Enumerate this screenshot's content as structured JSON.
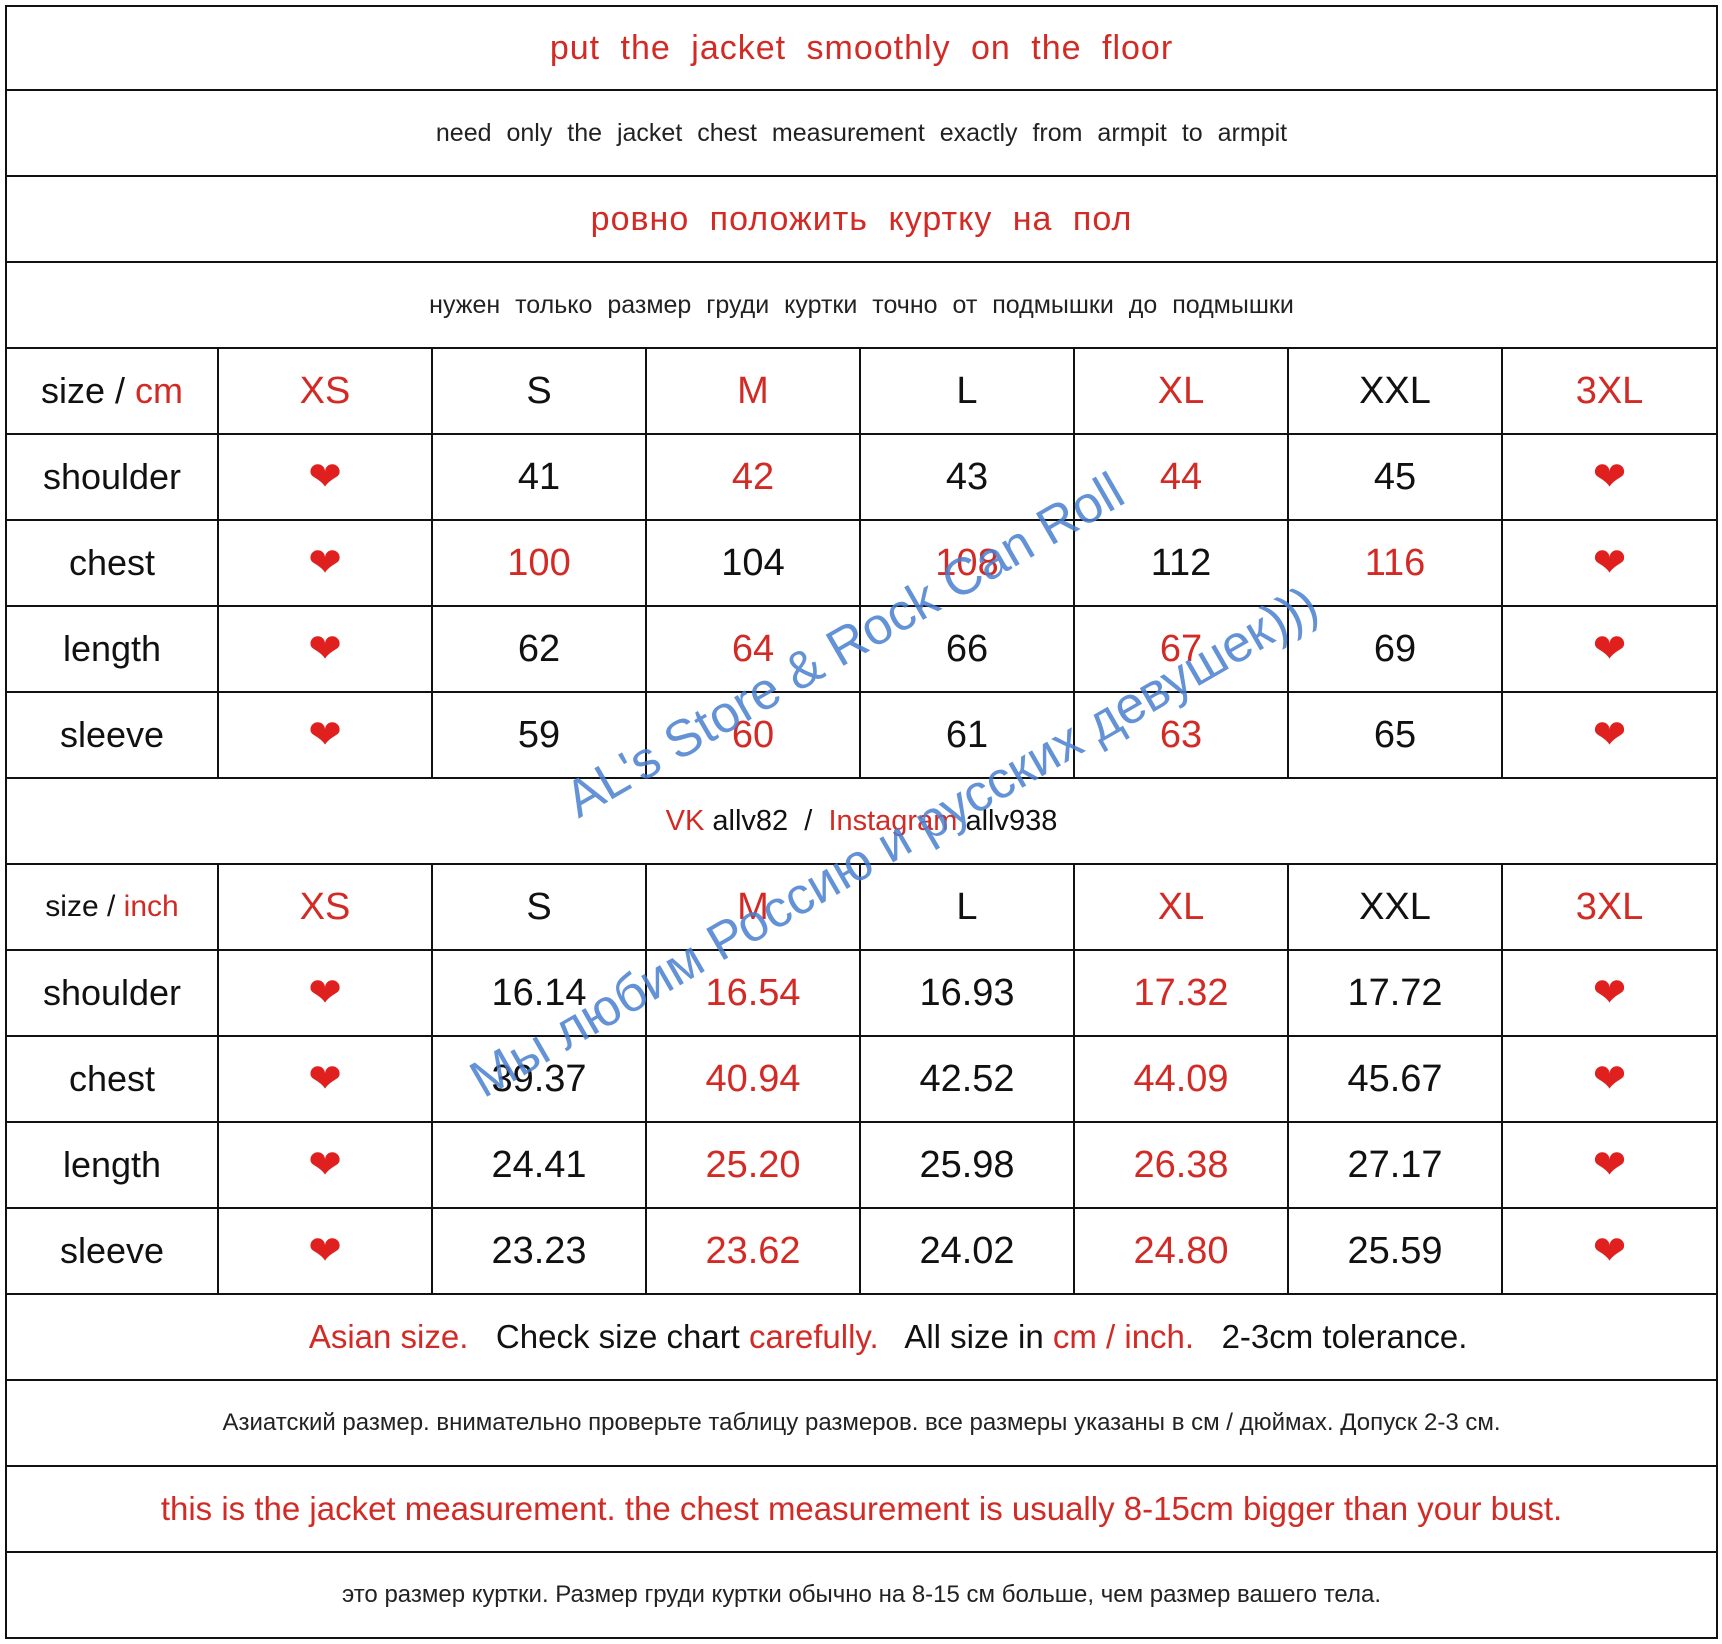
{
  "header": {
    "line1": "put  the  jacket  smoothly  on  the  floor",
    "line2": "need  only  the  jacket  chest  measurement  exactly  from  armpit  to  armpit",
    "line3": "ровно  положить  куртку  на  пол",
    "line4": "нужен  только  размер  груди  куртки  точно  от  подмышки  до  подмышки"
  },
  "sizes": [
    "XS",
    "S",
    "M",
    "L",
    "XL",
    "XXL",
    "3XL"
  ],
  "heart_symbol": "❤",
  "cm_table": {
    "corner_prefix": "size / ",
    "corner_unit": "cm",
    "rows": [
      {
        "label": "shoulder",
        "values": [
          "41",
          "42",
          "43",
          "44",
          "45"
        ]
      },
      {
        "label": "chest",
        "values": [
          "100",
          "104",
          "108",
          "112",
          "116"
        ]
      },
      {
        "label": "length",
        "values": [
          "62",
          "64",
          "66",
          "67",
          "69"
        ]
      },
      {
        "label": "sleeve",
        "values": [
          "59",
          "60",
          "61",
          "63",
          "65"
        ]
      }
    ]
  },
  "social": {
    "vk_label": "VK",
    "vk_handle": " allv82  /  ",
    "ig_label": "Instagram",
    "ig_handle": " allv938"
  },
  "inch_table": {
    "corner_prefix": "size / ",
    "corner_unit": "inch",
    "rows": [
      {
        "label": "shoulder",
        "values": [
          "16.14",
          "16.54",
          "16.93",
          "17.32",
          "17.72"
        ]
      },
      {
        "label": "chest",
        "values": [
          "39.37",
          "40.94",
          "42.52",
          "44.09",
          "45.67"
        ]
      },
      {
        "label": "length",
        "values": [
          "24.41",
          "25.20",
          "25.98",
          "26.38",
          "27.17"
        ]
      },
      {
        "label": "sleeve",
        "values": [
          "23.23",
          "23.62",
          "24.02",
          "24.80",
          "25.59"
        ]
      }
    ]
  },
  "notes": {
    "en_part1": "Asian size.",
    "en_part2": "   Check size chart ",
    "en_part3": "carefully.",
    "en_part4": "   All size in ",
    "en_part5": "cm / inch.",
    "en_part6": "   2-3cm tolerance.",
    "ru": "Азиатский размер. внимательно проверьте таблицу размеров. все размеры указаны в см / дюймах. Допуск 2-3 см.",
    "warn_en": "this is the jacket measurement.  the chest measurement is usually 8-15cm bigger than your bust.",
    "warn_ru": "это размер куртки. Размер груди куртки обычно на 8-15 см больше, чем размер вашего тела."
  },
  "watermark": {
    "line1": "AL's Store & Rock Can Roll",
    "line2": "Мы любим Россию и русских девушек)))"
  },
  "colors": {
    "accent_red": "#d22b26",
    "watermark_blue": "#4a7fd0"
  }
}
